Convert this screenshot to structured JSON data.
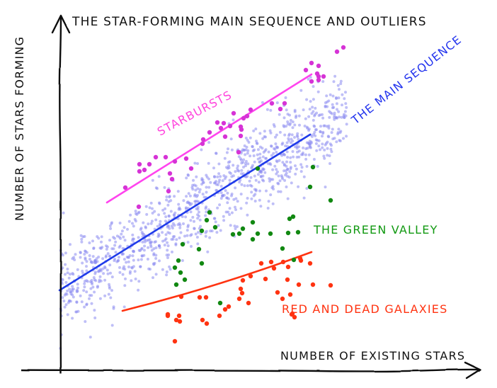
{
  "chart_data": {
    "type": "scatter",
    "style": "xkcd",
    "title": "THE STAR-FORMING MAIN SEQUENCE AND OUTLIERS",
    "xlabel": "NUMBER OF EXISTING STARS",
    "ylabel": "NUMBER OF STARS FORMING",
    "grid": false,
    "legend": null,
    "axes": {
      "ticks": false,
      "arrows": true
    },
    "annotations": [
      {
        "text": "STARBURSTS",
        "color": "#ff44dd",
        "x": 222,
        "y": 190,
        "rotate": -28
      },
      {
        "text": "THE MAIN SEQUENCE",
        "color": "#2233ee",
        "x": 500,
        "y": 175,
        "rotate": -38
      },
      {
        "text": "THE GREEN VALLEY",
        "color": "#119911",
        "x": 443,
        "y": 330,
        "rotate": 0
      },
      {
        "text": "RED AND DEAD GALAXIES",
        "color": "#ff3311",
        "x": 398,
        "y": 440,
        "rotate": 0
      }
    ],
    "series": [
      {
        "name": "Main sequence (background galaxies)",
        "color": "#8a8af0",
        "marker_size": 2,
        "trend_line": {
          "color": "#1f3bea",
          "x1": 84,
          "y1": 410,
          "x2": 438,
          "y2": 190
        },
        "distribution": {
          "count": 1100,
          "x_range": [
            85,
            490
          ],
          "scatter_sd": 38
        }
      },
      {
        "name": "Starbursts",
        "color": "#d633d6",
        "marker_size": 3.2,
        "trend_line": {
          "color": "#ff44ee",
          "x1": 151,
          "y1": 286,
          "x2": 440,
          "y2": 105
        },
        "points": [
          [
            177,
            265
          ],
          [
            197,
            242
          ],
          [
            204,
            240
          ],
          [
            211,
            232
          ],
          [
            220,
            222
          ],
          [
            234,
            222
          ],
          [
            240,
            245
          ],
          [
            243,
            253
          ],
          [
            238,
            270
          ],
          [
            247,
            228
          ],
          [
            263,
            224
          ],
          [
            270,
            238
          ],
          [
            286,
            203
          ],
          [
            287,
            197
          ],
          [
            296,
            187
          ],
          [
            307,
            173
          ],
          [
            312,
            181
          ],
          [
            316,
            174
          ],
          [
            318,
            193
          ],
          [
            325,
            178
          ],
          [
            330,
            160
          ],
          [
            337,
            215
          ],
          [
            340,
            192
          ],
          [
            340,
            179
          ],
          [
            341,
            183
          ],
          [
            344,
            167
          ],
          [
            349,
            164
          ],
          [
            354,
            155
          ],
          [
            384,
            146
          ],
          [
            396,
            154
          ],
          [
            402,
            146
          ],
          [
            432,
            99
          ],
          [
            440,
            89
          ],
          [
            440,
            115
          ],
          [
            448,
            104
          ],
          [
            450,
            93
          ],
          [
            450,
            108
          ],
          [
            450,
            113
          ],
          [
            457,
            108
          ],
          [
            476,
            73
          ],
          [
            485,
            67
          ],
          [
            196,
            292
          ],
          [
            197,
            232
          ]
        ]
      },
      {
        "name": "Green valley",
        "color": "#118811",
        "marker_size": 3.2,
        "points": [
          [
            364,
            238
          ],
          [
            442,
            236
          ],
          [
            438,
            264
          ],
          [
            467,
            283
          ],
          [
            296,
            300
          ],
          [
            292,
            311
          ],
          [
            285,
            326
          ],
          [
            304,
            321
          ],
          [
            338,
            330
          ],
          [
            343,
            323
          ],
          [
            357,
            314
          ],
          [
            357,
            338
          ],
          [
            364,
            330
          ],
          [
            382,
            330
          ],
          [
            407,
            329
          ],
          [
            414,
            306
          ],
          [
            409,
            309
          ],
          [
            421,
            328
          ],
          [
            252,
            368
          ],
          [
            247,
            378
          ],
          [
            255,
            385
          ],
          [
            249,
            402
          ],
          [
            281,
            352
          ],
          [
            285,
            372
          ],
          [
            329,
            331
          ],
          [
            399,
            351
          ],
          [
            415,
            367
          ],
          [
            258,
            345
          ],
          [
            261,
            395
          ],
          [
            311,
            428
          ]
        ]
      },
      {
        "name": "Red and dead",
        "color": "#ff3311",
        "marker_size": 3.2,
        "trend_line": {
          "color": "#ff3311",
          "x1": 173,
          "y1": 439,
          "x2": 440,
          "y2": 356,
          "curved": true
        },
        "points": [
          [
            256,
            419
          ],
          [
            282,
            420
          ],
          [
            291,
            420
          ],
          [
            237,
            444
          ],
          [
            249,
            452
          ],
          [
            254,
            454
          ],
          [
            247,
            482
          ],
          [
            286,
            452
          ],
          [
            292,
            457
          ],
          [
            310,
            446
          ],
          [
            318,
            437
          ],
          [
            323,
            433
          ],
          [
            340,
            408
          ],
          [
            338,
            422
          ],
          [
            342,
            414
          ],
          [
            351,
            428
          ],
          [
            354,
            390
          ],
          [
            375,
            394
          ],
          [
            369,
            372
          ],
          [
            383,
            370
          ],
          [
            387,
            379
          ],
          [
            400,
            370
          ],
          [
            407,
            377
          ],
          [
            424,
            365
          ],
          [
            438,
            372
          ],
          [
            442,
            402
          ],
          [
            467,
            403
          ],
          [
            399,
            422
          ],
          [
            410,
            416
          ],
          [
            412,
            444
          ],
          [
            413,
            443
          ],
          [
            343,
            396
          ],
          [
            392,
            413
          ],
          [
            406,
            395
          ],
          [
            422,
            402
          ],
          [
            416,
            448
          ],
          [
            237,
            446
          ],
          [
            253,
            446
          ],
          [
            425,
            368
          ]
        ]
      }
    ],
    "xlim": [
      0,
      702
    ],
    "ylim": [
      548,
      0
    ]
  }
}
